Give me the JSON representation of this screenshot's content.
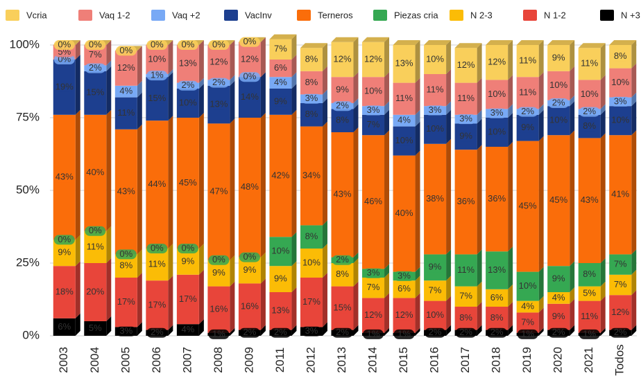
{
  "chart_data": {
    "type": "stacked-bar-3d",
    "categories": [
      "2003",
      "2004",
      "2005",
      "2006",
      "2007",
      "2008",
      "2009",
      "2011",
      "2012",
      "2013",
      "2014",
      "2015",
      "2016",
      "2017",
      "2018",
      "2019",
      "2020",
      "2021",
      "Todos"
    ],
    "ylim": [
      0,
      100
    ],
    "yticks": [
      {
        "value": 0,
        "label": "0%"
      },
      {
        "value": 25,
        "label": "25%"
      },
      {
        "value": 50,
        "label": "50%"
      },
      {
        "value": 75,
        "label": "75%"
      },
      {
        "value": 100,
        "label": "100%"
      }
    ],
    "grid": true,
    "legend": "top",
    "series": [
      {
        "name": "Vcria",
        "color": "#f9cf5b",
        "values": [
          0,
          0,
          0,
          0,
          0,
          0,
          0,
          7,
          8,
          12,
          12,
          13,
          10,
          12,
          12,
          11,
          9,
          11,
          8
        ],
        "value_labels": [
          "0%",
          "0%",
          "0%",
          "0%",
          "0%",
          "0%",
          "0%",
          "7%",
          "8%",
          "12%",
          "12%",
          "13%",
          "10%",
          "12%",
          "12%",
          "11%",
          "9%",
          "11%",
          "8%"
        ]
      },
      {
        "name": "Vaq 1-2",
        "color": "#ef7f78",
        "values": [
          5,
          7,
          12,
          10,
          13,
          12,
          12,
          6,
          8,
          9,
          10,
          11,
          11,
          11,
          10,
          11,
          10,
          10,
          10
        ],
        "value_labels": [
          "5%",
          "7%",
          "12%",
          "10%",
          "13%",
          "12%",
          "12%",
          "6%",
          "8%",
          "9%",
          "10%",
          "11%",
          "11%",
          "11%",
          "10%",
          "11%",
          "10%",
          "10%",
          "10%"
        ]
      },
      {
        "name": "Vaq +2",
        "color": "#78a9f5",
        "values": [
          0,
          2,
          4,
          1,
          2,
          2,
          0,
          4,
          3,
          2,
          3,
          4,
          3,
          3,
          3,
          2,
          2,
          2,
          3
        ],
        "value_labels": [
          "0%",
          "2%",
          "4%",
          "1%",
          "2%",
          "2%",
          "0%",
          "4%",
          "3%",
          "2%",
          "3%",
          "4%",
          "3%",
          "3%",
          "3%",
          "2%",
          "2%",
          "2%",
          "3%"
        ]
      },
      {
        "name": "VacInv",
        "color": "#1d3f8f",
        "values": [
          19,
          15,
          11,
          15,
          10,
          13,
          14,
          9,
          8,
          8,
          7,
          10,
          10,
          9,
          10,
          9,
          10,
          8,
          10
        ],
        "value_labels": [
          "19%",
          "15%",
          "11%",
          "15%",
          "10%",
          "13%",
          "14%",
          "9%",
          "8%",
          "8%",
          "7%",
          "10%",
          "10%",
          "9%",
          "10%",
          "9%",
          "10%",
          "8%",
          "10%"
        ]
      },
      {
        "name": "Terneros",
        "color": "#fa6d0a",
        "values": [
          43,
          40,
          43,
          44,
          45,
          47,
          48,
          42,
          34,
          43,
          46,
          40,
          38,
          36,
          36,
          45,
          45,
          43,
          41
        ],
        "value_labels": [
          "43%",
          "40%",
          "43%",
          "44%",
          "45%",
          "47%",
          "48%",
          "42%",
          "34%",
          "43%",
          "46%",
          "40%",
          "38%",
          "36%",
          "36%",
          "45%",
          "45%",
          "43%",
          "41%"
        ]
      },
      {
        "name": "Piezas cria",
        "color": "#35a852",
        "values": [
          0,
          0,
          0,
          0,
          0,
          0,
          0,
          10,
          8,
          2,
          3,
          3,
          9,
          11,
          13,
          10,
          9,
          8,
          7
        ],
        "value_labels": [
          "0%",
          "0%",
          "0%",
          "0%",
          "0%",
          "0%",
          "0%",
          "10%",
          "8%",
          "2%",
          "3%",
          "3%",
          "9%",
          "11%",
          "13%",
          "10%",
          "9%",
          "8%",
          "7%"
        ]
      },
      {
        "name": "N 2-3",
        "color": "#fbbc06",
        "values": [
          9,
          11,
          8,
          11,
          9,
          9,
          9,
          9,
          10,
          8,
          7,
          6,
          7,
          7,
          6,
          4,
          4,
          5,
          7
        ],
        "value_labels": [
          "9%",
          "11%",
          "8%",
          "11%",
          "9%",
          "9%",
          "9%",
          "9%",
          "10%",
          "8%",
          "7%",
          "6%",
          "7%",
          "7%",
          "6%",
          "4%",
          "4%",
          "5%",
          "7%"
        ]
      },
      {
        "name": "N 1-2",
        "color": "#e8453a",
        "values": [
          18,
          20,
          17,
          17,
          17,
          16,
          16,
          13,
          17,
          15,
          12,
          12,
          10,
          8,
          8,
          7,
          9,
          11,
          12
        ],
        "value_labels": [
          "18%",
          "20%",
          "17%",
          "17%",
          "17%",
          "16%",
          "16%",
          "13%",
          "17%",
          "15%",
          "12%",
          "12%",
          "10%",
          "8%",
          "8%",
          "7%",
          "9%",
          "11%",
          "12%"
        ]
      },
      {
        "name": "N +3",
        "color": "#000000",
        "values": [
          6,
          5,
          3,
          2,
          4,
          1,
          2,
          2,
          3,
          2,
          1,
          1,
          2,
          2,
          2,
          1,
          2,
          1,
          2
        ],
        "value_labels": [
          "6%",
          "5%",
          "3%",
          "2%",
          "4%",
          "1%",
          "2%",
          "2%",
          "3%",
          "2%",
          "1%",
          "1%",
          "2%",
          "2%",
          "2%",
          "1%",
          "2%",
          "1%",
          "2%"
        ]
      }
    ]
  }
}
